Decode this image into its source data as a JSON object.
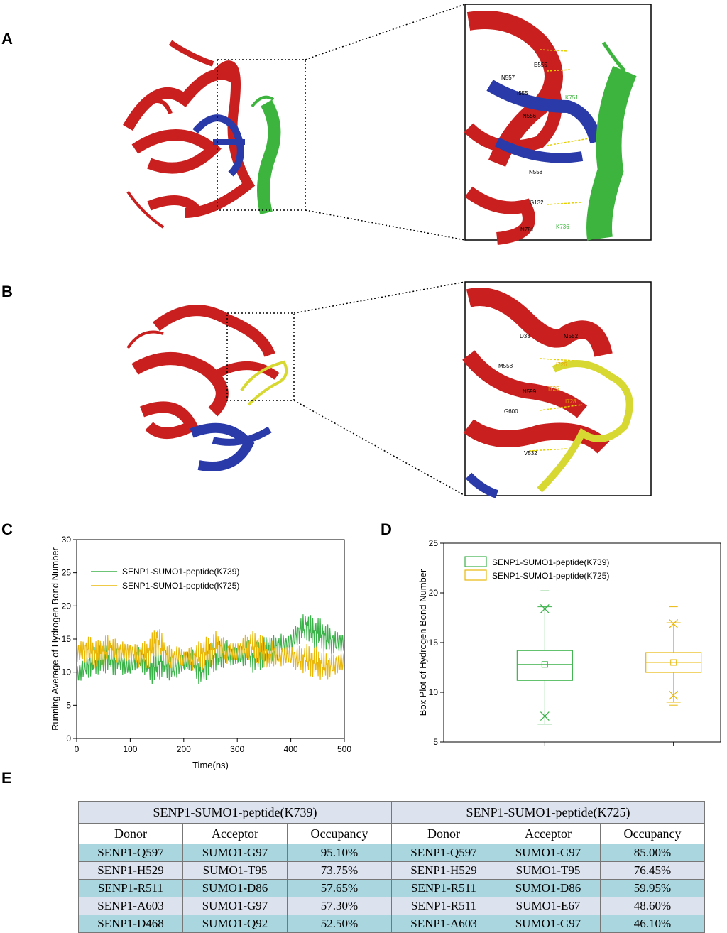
{
  "panels": {
    "a": "A",
    "b": "B",
    "c": "C",
    "d": "D",
    "e": "E"
  },
  "panel_a": {
    "residue_labels_black": [
      "E555",
      "N557",
      "I555",
      "N556",
      "N558",
      "G132",
      "N781"
    ],
    "residue_labels_green": [
      "K751",
      "K736"
    ]
  },
  "panel_b": {
    "residue_labels_black": [
      "D33",
      "M552",
      "M558",
      "N599",
      "G600",
      "V532"
    ],
    "residue_labels_orange": [
      "I726",
      "I725",
      "I728"
    ]
  },
  "colors": {
    "protein_red": "#c9201f",
    "protein_blue": "#2a3aa8",
    "peptide_green": "#3db43d",
    "peptide_yellow": "#d8d832",
    "series_k739": "#3bb24a",
    "series_k725": "#e9b80a",
    "table_teal": "#a9d6df",
    "table_lavender": "#dde3ee"
  },
  "chart_data": [
    {
      "type": "line",
      "title": "",
      "xlabel": "Time(ns)",
      "ylabel": "Running Average of Hydrogen Bond Number",
      "xlim": [
        0,
        500
      ],
      "ylim": [
        0,
        30
      ],
      "xticks": [
        0,
        100,
        200,
        300,
        400,
        500
      ],
      "yticks": [
        0,
        5,
        10,
        15,
        20,
        25,
        30
      ],
      "legend": "top-left",
      "series": [
        {
          "name": "SENP1-SUMO1-peptide(K739)",
          "color": "#3bb24a",
          "x": [
            0,
            10,
            20,
            30,
            40,
            50,
            60,
            70,
            80,
            90,
            100,
            110,
            120,
            130,
            140,
            150,
            160,
            170,
            180,
            190,
            200,
            210,
            220,
            230,
            240,
            250,
            260,
            270,
            280,
            290,
            300,
            310,
            320,
            330,
            340,
            350,
            360,
            370,
            380,
            390,
            400,
            410,
            420,
            430,
            440,
            450,
            460,
            470,
            480,
            490,
            500
          ],
          "y": [
            9.5,
            10.5,
            11,
            11.5,
            12,
            12,
            12.5,
            11.5,
            12,
            11,
            11,
            12,
            12,
            11.5,
            10.5,
            11,
            11.5,
            11,
            10.5,
            11,
            11.5,
            12,
            11.5,
            10,
            11,
            12,
            12.5,
            12.5,
            13,
            12.5,
            12.5,
            12.5,
            13,
            12,
            12.5,
            13,
            13,
            13.5,
            14,
            14,
            14.5,
            15.5,
            16.5,
            17,
            16,
            16,
            15.5,
            15,
            14.5,
            14.5,
            14.5
          ]
        },
        {
          "name": "SENP1-SUMO1-peptide(K725)",
          "color": "#e9b80a",
          "x": [
            0,
            10,
            20,
            30,
            40,
            50,
            60,
            70,
            80,
            90,
            100,
            110,
            120,
            130,
            140,
            150,
            160,
            170,
            180,
            190,
            200,
            210,
            220,
            230,
            240,
            250,
            260,
            270,
            280,
            290,
            300,
            310,
            320,
            330,
            340,
            350,
            360,
            370,
            380,
            390,
            400,
            410,
            420,
            430,
            440,
            450,
            460,
            470,
            480,
            490,
            500
          ],
          "y": [
            13,
            13,
            13.5,
            13,
            12.5,
            13,
            13.5,
            13,
            13,
            13,
            13,
            12.5,
            12.5,
            12.5,
            13.5,
            15,
            13.5,
            12,
            12,
            12.5,
            12,
            12,
            12,
            12.5,
            13,
            13,
            14,
            13.5,
            13,
            13,
            13,
            13.5,
            14,
            14,
            13.5,
            13,
            13,
            13,
            12.5,
            12.5,
            12.5,
            12,
            12,
            12,
            11.5,
            11.5,
            11,
            11,
            11,
            11.5,
            11.5
          ]
        }
      ]
    },
    {
      "type": "box",
      "title": "",
      "xlabel": "",
      "ylabel": "Box Plot of Hydrogen Bond Number",
      "ylim": [
        5,
        25
      ],
      "yticks": [
        5,
        10,
        15,
        20,
        25
      ],
      "legend": "top-left",
      "series": [
        {
          "name": "SENP1-SUMO1-peptide(K739)",
          "color": "#3bb24a",
          "min": 6.8,
          "q1": 11.2,
          "median": 12.8,
          "q3": 14.2,
          "max": 18.6,
          "mean": 12.8,
          "p1": 7.6,
          "p99": 18.4,
          "outlier_max": 20.2
        },
        {
          "name": "SENP1-SUMO1-peptide(K725)",
          "color": "#e9b80a",
          "min": 9.0,
          "q1": 12.0,
          "median": 13.0,
          "q3": 14.0,
          "max": 17.0,
          "mean": 13.0,
          "p1": 9.7,
          "p99": 16.9,
          "outlier_min": 8.7,
          "outlier_max": 18.6
        }
      ]
    },
    {
      "type": "table",
      "groups": [
        "SENP1-SUMO1-peptide(K739)",
        "SENP1-SUMO1-peptide(K725)"
      ],
      "columns": [
        "Donor",
        "Acceptor",
        "Occupancy"
      ],
      "rows_k739": [
        [
          "SENP1-Q597",
          "SUMO1-G97",
          "95.10%"
        ],
        [
          "SENP1-H529",
          "SUMO1-T95",
          "73.75%"
        ],
        [
          "SENP1-R511",
          "SUMO1-D86",
          "57.65%"
        ],
        [
          "SENP1-A603",
          "SUMO1-G97",
          "57.30%"
        ],
        [
          "SENP1-D468",
          "SUMO1-Q92",
          "52.50%"
        ]
      ],
      "rows_k725": [
        [
          "SENP1-Q597",
          "SUMO1-G97",
          "85.00%"
        ],
        [
          "SENP1-H529",
          "SUMO1-T95",
          "76.45%"
        ],
        [
          "SENP1-R511",
          "SUMO1-D86",
          "59.95%"
        ],
        [
          "SENP1-R511",
          "SUMO1-E67",
          "48.60%"
        ],
        [
          "SENP1-A603",
          "SUMO1-G97",
          "46.10%"
        ]
      ]
    }
  ]
}
